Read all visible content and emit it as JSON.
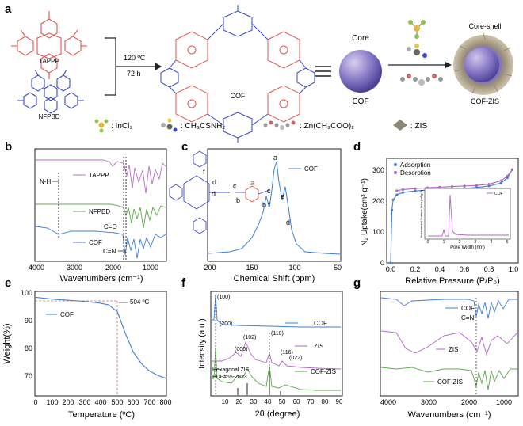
{
  "panels": {
    "a": {
      "letter": "a",
      "tappp_label": "TAPPP",
      "nfpbd_label": "NFPBD",
      "cond_temp": "120 ºC",
      "cond_time": "72 h",
      "cof_label": "COF",
      "core_label": "Core",
      "core_cof_label": "COF",
      "shell_title": "Core-shell",
      "cof_zis_label": "COF-ZIS",
      "legend": [
        {
          "label": ": InCl₃",
          "color": "#8bc34a"
        },
        {
          "label": ": CH₃CSNH₂",
          "color": "#e8c640"
        },
        {
          "label": ": Zn(CH₃COO)₂",
          "color": "#c66"
        },
        {
          "label": ": ZIS",
          "color": "#8a8677"
        }
      ]
    },
    "b": {
      "letter": "b",
      "xlabel": "Wavenumbers (cm⁻¹)",
      "xticks": [
        "4000",
        "3000",
        "2000",
        "1000"
      ],
      "series": [
        "TAPPP",
        "NFPBD",
        "COF"
      ],
      "annotations": [
        "N-H",
        "C=O",
        "C=N"
      ]
    },
    "c": {
      "letter": "c",
      "xlabel": "Chemical Shift (ppm)",
      "xticks": [
        "200",
        "150",
        "100",
        "50"
      ],
      "legend": "COF",
      "peaks": [
        "a",
        "b",
        "c",
        "d",
        "e",
        "f"
      ]
    },
    "d": {
      "letter": "d",
      "ylabel": "N₂ Uptake(cm³ g⁻¹)",
      "xlabel": "Relative Pressure (P/P₀)",
      "xticks": [
        "0.0",
        "0.2",
        "0.4",
        "0.6",
        "0.8",
        "1.0"
      ],
      "yticks": [
        "0",
        "100",
        "200",
        "300"
      ],
      "legend": [
        "Adsorption",
        "Desorption"
      ],
      "inset_xlabel": "Pore Width (nm)",
      "inset_ylabel": "Incremental Surface Area (m² g⁻¹)",
      "inset_legend": "COF",
      "inset_xticks": [
        "0",
        "1",
        "2",
        "3",
        "4",
        "5"
      ]
    },
    "e": {
      "letter": "e",
      "ylabel": "Weight(%)",
      "xlabel": "Temperature (ºC)",
      "xticks": [
        "0",
        "100",
        "200",
        "300",
        "400",
        "500",
        "600",
        "700",
        "800"
      ],
      "yticks": [
        "70",
        "80",
        "90",
        "100"
      ],
      "legend": "COF",
      "annotation": "504 ºC"
    },
    "f": {
      "letter": "f",
      "ylabel": "Intensity (a.u.)",
      "xlabel": "2θ (degree)",
      "xticks": [
        "10",
        "20",
        "30",
        "40",
        "50",
        "60",
        "70",
        "80",
        "90"
      ],
      "series": [
        "COF",
        "ZIS",
        "COF-ZIS"
      ],
      "peaks": [
        "(100)",
        "(200)",
        "(006)",
        "(102)",
        "(110)",
        "(116)",
        "(022)"
      ],
      "reference": [
        "Hexagonal ZIS",
        "PDF#65-2023"
      ]
    },
    "g": {
      "letter": "g",
      "xlabel": "Wavenumbers (cm⁻¹)",
      "xticks": [
        "4000",
        "3000",
        "2000",
        "1000"
      ],
      "series": [
        "COF",
        "ZIS",
        "COF-ZIS"
      ],
      "annotation": "C=N"
    }
  },
  "chart_data": [
    {
      "type": "line",
      "panel": "d",
      "title": "",
      "xlabel": "Relative Pressure (P/P₀)",
      "ylabel": "N₂ Uptake(cm³ g⁻¹)",
      "xlim": [
        0.0,
        1.0
      ],
      "ylim": [
        0,
        340
      ],
      "series": [
        {
          "name": "Adsorption",
          "color": "#3f7fd6",
          "x": [
            0.0,
            0.01,
            0.02,
            0.05,
            0.1,
            0.2,
            0.3,
            0.4,
            0.5,
            0.6,
            0.7,
            0.8,
            0.9,
            0.95,
            0.99
          ],
          "y": [
            0,
            180,
            215,
            232,
            240,
            245,
            248,
            250,
            252,
            254,
            257,
            262,
            272,
            290,
            318
          ]
        },
        {
          "name": "Desorption",
          "color": "#b463c8",
          "x": [
            0.99,
            0.95,
            0.9,
            0.8,
            0.7,
            0.6,
            0.5,
            0.4,
            0.3,
            0.2,
            0.1,
            0.05
          ],
          "y": [
            318,
            296,
            280,
            268,
            264,
            262,
            260,
            258,
            256,
            253,
            250,
            246
          ]
        }
      ]
    },
    {
      "type": "line",
      "panel": "e",
      "title": "",
      "xlabel": "Temperature (ºC)",
      "ylabel": "Weight(%)",
      "xlim": [
        0,
        800
      ],
      "ylim": [
        70,
        102
      ],
      "series": [
        {
          "name": "COF",
          "color": "#3f7fd6",
          "x": [
            0,
            100,
            200,
            300,
            400,
            450,
            504,
            550,
            600,
            650,
            700,
            750,
            800
          ],
          "y": [
            100.0,
            99.4,
            99.0,
            98.6,
            98.0,
            97.4,
            95.0,
            88.0,
            81.5,
            77.5,
            75.0,
            73.5,
            72.5
          ]
        }
      ]
    }
  ]
}
